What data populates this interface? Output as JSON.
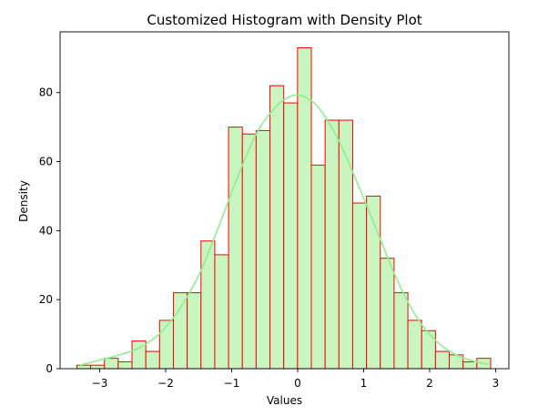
{
  "chart_data": {
    "type": "bar",
    "title": "Customized Histogram with Density Plot",
    "xlabel": "Values",
    "ylabel": "Density",
    "xlim": [
      -3.6,
      3.2
    ],
    "ylim": [
      0,
      97.6
    ],
    "xticks": [
      -3,
      -2,
      -1,
      0,
      1,
      2,
      3
    ],
    "xtick_labels": [
      "−3",
      "−2",
      "−1",
      "0",
      "1",
      "2",
      "3"
    ],
    "yticks": [
      0,
      20,
      40,
      60,
      80
    ],
    "ytick_labels": [
      "0",
      "20",
      "40",
      "60",
      "80"
    ],
    "grid": false,
    "legend": "none",
    "colors": {
      "bar_fill": "#c8f5c0",
      "bar_edge": "#ff0000",
      "density_line": "#90ee90",
      "axes": "#000000"
    },
    "bins": {
      "edges": [
        -3.346,
        -3.137,
        -2.928,
        -2.719,
        -2.51,
        -2.301,
        -2.092,
        -1.883,
        -1.674,
        -1.465,
        -1.256,
        -1.047,
        -0.838,
        -0.629,
        -0.42,
        -0.211,
        -0.002,
        0.207,
        0.416,
        0.625,
        0.834,
        1.043,
        1.252,
        1.461,
        1.67,
        1.879,
        2.088,
        2.297,
        2.506,
        2.715,
        2.924
      ],
      "counts": [
        1,
        1,
        3,
        2,
        8,
        5,
        14,
        22,
        22,
        37,
        33,
        70,
        68,
        69,
        82,
        77,
        93,
        59,
        72,
        72,
        48,
        50,
        32,
        22,
        14,
        11,
        5,
        4,
        2,
        3
      ]
    },
    "density_curve": {
      "x": [
        -3.3,
        -3.0,
        -2.7,
        -2.4,
        -2.1,
        -1.8,
        -1.5,
        -1.2,
        -0.9,
        -0.6,
        -0.3,
        -0.1,
        0.0,
        0.1,
        0.3,
        0.6,
        0.9,
        1.2,
        1.5,
        1.8,
        2.1,
        2.4,
        2.7,
        2.9
      ],
      "y": [
        1.0,
        2.5,
        4.0,
        6.0,
        10.0,
        17.0,
        27.0,
        41.0,
        56.0,
        69.0,
        76.5,
        79.0,
        79.3,
        78.8,
        76.0,
        67.0,
        54.0,
        40.0,
        26.0,
        15.0,
        8.0,
        4.0,
        2.0,
        1.3
      ]
    }
  }
}
